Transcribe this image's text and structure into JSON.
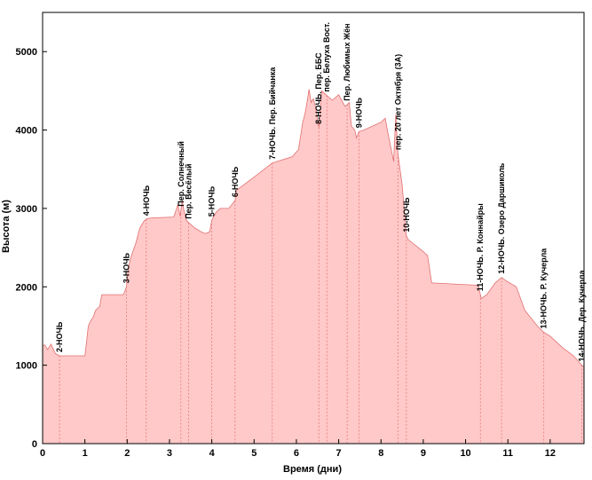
{
  "chart_data": {
    "type": "area",
    "xlabel": "Время (дни)",
    "ylabel": "Высота (м)",
    "xlim": [
      0,
      12.8
    ],
    "ylim": [
      0,
      5500
    ],
    "x_ticks": [
      0,
      1,
      2,
      3,
      4,
      5,
      6,
      7,
      8,
      9,
      10,
      11,
      12
    ],
    "y_ticks": [
      0,
      1000,
      2000,
      3000,
      4000,
      5000
    ],
    "grid": false,
    "colors": {
      "fill": "#ffc9c9",
      "line": "#e07070",
      "marker_line": "#e07070",
      "axis": "#000000"
    },
    "series": [
      {
        "x": [
          0,
          0.05,
          0.12,
          0.2,
          0.3,
          0.4,
          1.0,
          1.08,
          1.12,
          1.2,
          1.25,
          1.35,
          1.4,
          1.9,
          1.93,
          1.98,
          2.03,
          2.1,
          2.2,
          2.3,
          2.4,
          2.47,
          2.6,
          3.1,
          3.2,
          3.25,
          3.3,
          3.35,
          3.4,
          3.45,
          3.6,
          3.75,
          3.85,
          3.95,
          4.0,
          4.1,
          4.2,
          4.4,
          4.55,
          4.58,
          5.0,
          5.43,
          5.9,
          6.05,
          6.15,
          6.2,
          6.25,
          6.3,
          6.35,
          6.4,
          6.45,
          6.53,
          6.6,
          6.7,
          6.85,
          7.0,
          7.15,
          7.25,
          7.3,
          7.38,
          7.42,
          7.48,
          7.6,
          7.8,
          8.0,
          8.1,
          8.15,
          8.3,
          8.35,
          8.4,
          8.5,
          8.6,
          8.65,
          9.0,
          9.1,
          9.2,
          10.3,
          10.37,
          10.5,
          10.7,
          10.85,
          10.95,
          11.2,
          11.4,
          11.55,
          11.7,
          11.85,
          12.0,
          12.3,
          12.55,
          12.75,
          12.8
        ],
        "y": [
          1250,
          1260,
          1200,
          1270,
          1150,
          1120,
          1120,
          1500,
          1550,
          1620,
          1700,
          1750,
          1900,
          1900,
          1920,
          2000,
          2250,
          2400,
          2550,
          2750,
          2840,
          2870,
          2880,
          2890,
          3050,
          2900,
          3100,
          2950,
          2850,
          2820,
          2750,
          2700,
          2680,
          2700,
          2850,
          2950,
          3000,
          3000,
          3100,
          3230,
          3400,
          3580,
          3660,
          3750,
          4100,
          4200,
          4350,
          4520,
          4350,
          4400,
          4300,
          4030,
          4500,
          4450,
          4380,
          4450,
          4300,
          4350,
          4050,
          4000,
          3900,
          3980,
          4000,
          4050,
          4100,
          4150,
          4000,
          3600,
          4200,
          3700,
          3300,
          2650,
          2600,
          2450,
          2400,
          2050,
          2020,
          1850,
          1900,
          2050,
          2120,
          2080,
          2000,
          1700,
          1600,
          1500,
          1420,
          1370,
          1220,
          1120,
          1000,
          980
        ]
      }
    ],
    "markers": [
      {
        "x": 0.4,
        "label": "2-НОЧЬ"
      },
      {
        "x": 1.98,
        "label": "3-НОЧЬ"
      },
      {
        "x": 2.45,
        "label": "4-НОЧЬ"
      },
      {
        "x": 3.27,
        "label": "Пер. Солнечный"
      },
      {
        "x": 3.45,
        "label": "Пер. Весёлый"
      },
      {
        "x": 4.0,
        "label": "5-НОЧЬ"
      },
      {
        "x": 4.55,
        "label": "6-НОЧЬ"
      },
      {
        "x": 5.43,
        "label": "7-НОЧЬ. Пер. Бийчанка"
      },
      {
        "x": 6.53,
        "label": "8-НОЧЬ. Пер. ББС"
      },
      {
        "x": 6.72,
        "label": "пер. Белуха Вост."
      },
      {
        "x": 7.2,
        "label": "Пер. Любимых Жён"
      },
      {
        "x": 7.48,
        "label": "9-НОЧЬ"
      },
      {
        "x": 8.4,
        "label": "пер. 20 лет Октября (3А)"
      },
      {
        "x": 8.6,
        "label": "10-НОЧЬ"
      },
      {
        "x": 10.35,
        "label": "11-НОЧЬ. Р. Коннайры"
      },
      {
        "x": 10.85,
        "label": "12-НОЧЬ. Озеро Даршиколь"
      },
      {
        "x": 11.85,
        "label": "13-НОЧЬ. Р. Кучерла"
      },
      {
        "x": 12.75,
        "label": "14-НОЧЬ. Дер. Кучерла"
      }
    ]
  }
}
